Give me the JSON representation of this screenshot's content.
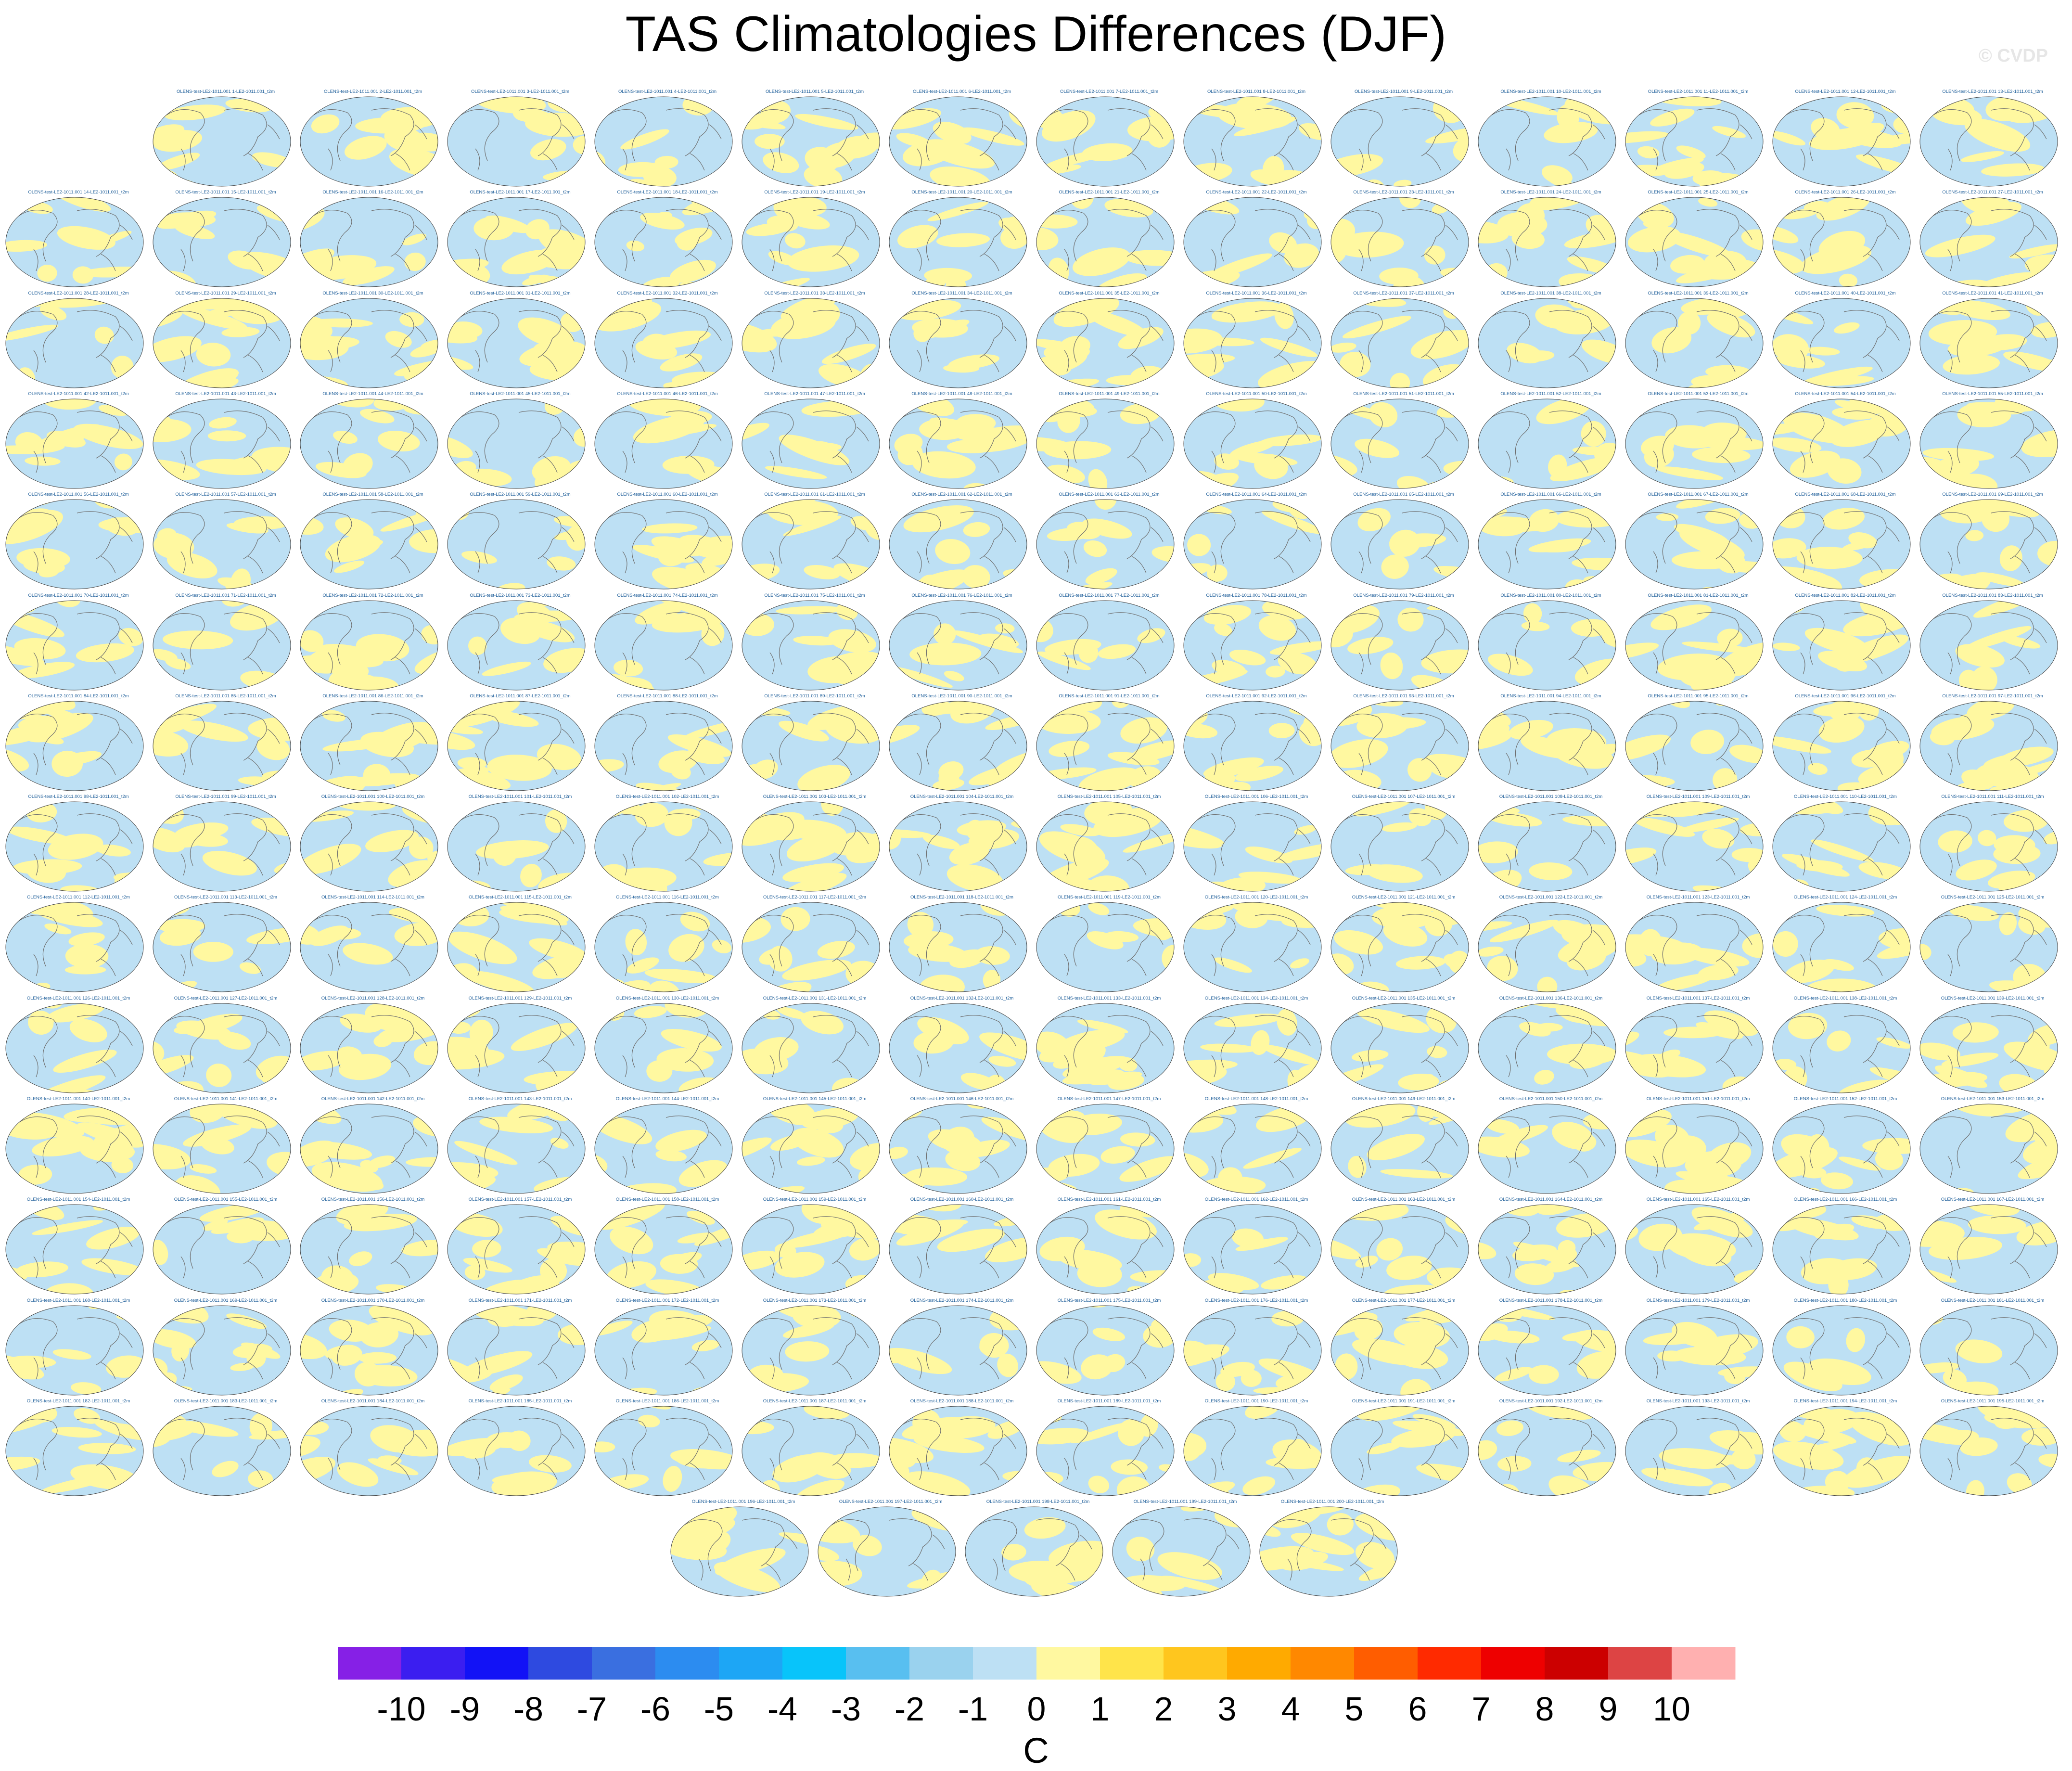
{
  "header": {
    "title": "TAS Climatologies Differences (DJF)",
    "watermark": "© CVDP"
  },
  "chart_data": {
    "type": "heatmap",
    "title": "TAS Climatologies Differences (DJF)",
    "panel_count": 200,
    "panel_labels": [
      "OLENS-test-LE2-1011.001 1-LE2-1011.001_t2m",
      "OLENS-test-LE2-1011.001 2-LE2-1011.001_t2m",
      "OLENS-test-LE2-1011.001 3-LE2-1011.001_t2m",
      "OLENS-test-LE2-1011.001 4-LE2-1011.001_t2m",
      "OLENS-test-LE2-1011.001 5-LE2-1011.001_t2m",
      "OLENS-test-LE2-1011.001 6-LE2-1011.001_t2m",
      "OLENS-test-LE2-1011.001 7-LE2-1011.001_t2m",
      "OLENS-test-LE2-1011.001 8-LE2-1011.001_t2m",
      "OLENS-test-LE2-1011.001 9-LE2-1011.001_t2m",
      "OLENS-test-LE2-1011.001 10-LE2-1011.001_t2m",
      "OLENS-test-LE2-1011.001 11-LE2-1011.001_t2m",
      "OLENS-test-LE2-1011.001 12-LE2-1011.001_t2m",
      "OLENS-test-LE2-1011.001 13-LE2-1011.001_t2m",
      "OLENS-test-LE2-1011.001 14-LE2-1011.001_t2m",
      "OLENS-test-LE2-1011.001 15-LE2-1011.001_t2m",
      "OLENS-test-LE2-1011.001 16-LE2-1011.001_t2m",
      "OLENS-test-LE2-1011.001 17-LE2-1011.001_t2m",
      "OLENS-test-LE2-1011.001 18-LE2-1011.001_t2m",
      "OLENS-test-LE2-1011.001 19-LE2-1011.001_t2m",
      "OLENS-test-LE2-1011.001 20-LE2-1011.001_t2m",
      "OLENS-test-LE2-1011.001 21-LE2-1011.001_t2m",
      "OLENS-test-LE2-1011.001 22-LE2-1011.001_t2m",
      "OLENS-test-LE2-1011.001 23-LE2-1011.001_t2m",
      "OLENS-test-LE2-1011.001 24-LE2-1011.001_t2m",
      "OLENS-test-LE2-1011.001 25-LE2-1011.001_t2m",
      "OLENS-test-LE2-1011.001 26-LE2-1011.001_t2m",
      "OLENS-test-LE2-1011.001 27-LE2-1011.001_t2m",
      "OLENS-test-LE2-1011.001 28-LE2-1011.001_t2m",
      "OLENS-test-LE2-1011.001 29-LE2-1011.001_t2m",
      "OLENS-test-LE2-1011.001 30-LE2-1011.001_t2m",
      "OLENS-test-LE2-1011.001 31-LE2-1011.001_t2m",
      "OLENS-test-LE2-1011.001 32-LE2-1011.001_t2m",
      "OLENS-test-LE2-1011.001 33-LE2-1011.001_t2m",
      "OLENS-test-LE2-1011.001 34-LE2-1011.001_t2m",
      "OLENS-test-LE2-1011.001 35-LE2-1011.001_t2m",
      "OLENS-test-LE2-1011.001 36-LE2-1011.001_t2m",
      "OLENS-test-LE2-1011.001 37-LE2-1011.001_t2m",
      "OLENS-test-LE2-1011.001 38-LE2-1011.001_t2m",
      "OLENS-test-LE2-1011.001 39-LE2-1011.001_t2m",
      "OLENS-test-LE2-1011.001 40-LE2-1011.001_t2m",
      "OLENS-test-LE2-1011.001 41-LE2-1011.001_t2m",
      "OLENS-test-LE2-1011.001 42-LE2-1011.001_t2m",
      "OLENS-test-LE2-1011.001 43-LE2-1011.001_t2m",
      "OLENS-test-LE2-1011.001 44-LE2-1011.001_t2m",
      "OLENS-test-LE2-1011.001 45-LE2-1011.001_t2m",
      "OLENS-test-LE2-1011.001 46-LE2-1011.001_t2m",
      "OLENS-test-LE2-1011.001 47-LE2-1011.001_t2m",
      "OLENS-test-LE2-1011.001 48-LE2-1011.001_t2m",
      "OLENS-test-LE2-1011.001 49-LE2-1011.001_t2m",
      "OLENS-test-LE2-1011.001 50-LE2-1011.001_t2m",
      "OLENS-test-LE2-1011.001 51-LE2-1011.001_t2m",
      "OLENS-test-LE2-1011.001 52-LE2-1011.001_t2m",
      "OLENS-test-LE2-1011.001 53-LE2-1011.001_t2m",
      "OLENS-test-LE2-1011.001 54-LE2-1011.001_t2m",
      "OLENS-test-LE2-1011.001 55-LE2-1011.001_t2m",
      "OLENS-test-LE2-1011.001 56-LE2-1011.001_t2m",
      "OLENS-test-LE2-1011.001 57-LE2-1011.001_t2m",
      "OLENS-test-LE2-1011.001 58-LE2-1011.001_t2m",
      "OLENS-test-LE2-1011.001 59-LE2-1011.001_t2m",
      "OLENS-test-LE2-1011.001 60-LE2-1011.001_t2m",
      "OLENS-test-LE2-1011.001 61-LE2-1011.001_t2m",
      "OLENS-test-LE2-1011.001 62-LE2-1011.001_t2m",
      "OLENS-test-LE2-1011.001 63-LE2-1011.001_t2m",
      "OLENS-test-LE2-1011.001 64-LE2-1011.001_t2m",
      "OLENS-test-LE2-1011.001 65-LE2-1011.001_t2m",
      "OLENS-test-LE2-1011.001 66-LE2-1011.001_t2m",
      "OLENS-test-LE2-1011.001 67-LE2-1011.001_t2m",
      "OLENS-test-LE2-1011.001 68-LE2-1011.001_t2m",
      "OLENS-test-LE2-1011.001 69-LE2-1011.001_t2m",
      "OLENS-test-LE2-1011.001 70-LE2-1011.001_t2m",
      "OLENS-test-LE2-1011.001 71-LE2-1011.001_t2m",
      "OLENS-test-LE2-1011.001 72-LE2-1011.001_t2m",
      "OLENS-test-LE2-1011.001 73-LE2-1011.001_t2m",
      "OLENS-test-LE2-1011.001 74-LE2-1011.001_t2m",
      "OLENS-test-LE2-1011.001 75-LE2-1011.001_t2m",
      "OLENS-test-LE2-1011.001 76-LE2-1011.001_t2m",
      "OLENS-test-LE2-1011.001 77-LE2-1011.001_t2m",
      "OLENS-test-LE2-1011.001 78-LE2-1011.001_t2m",
      "OLENS-test-LE2-1011.001 79-LE2-1011.001_t2m",
      "OLENS-test-LE2-1011.001 80-LE2-1011.001_t2m",
      "OLENS-test-LE2-1011.001 81-LE2-1011.001_t2m",
      "OLENS-test-LE2-1011.001 82-LE2-1011.001_t2m",
      "OLENS-test-LE2-1011.001 83-LE2-1011.001_t2m",
      "OLENS-test-LE2-1011.001 84-LE2-1011.001_t2m",
      "OLENS-test-LE2-1011.001 85-LE2-1011.001_t2m",
      "OLENS-test-LE2-1011.001 86-LE2-1011.001_t2m",
      "OLENS-test-LE2-1011.001 87-LE2-1011.001_t2m",
      "OLENS-test-LE2-1011.001 88-LE2-1011.001_t2m",
      "OLENS-test-LE2-1011.001 89-LE2-1011.001_t2m",
      "OLENS-test-LE2-1011.001 90-LE2-1011.001_t2m",
      "OLENS-test-LE2-1011.001 91-LE2-1011.001_t2m",
      "OLENS-test-LE2-1011.001 92-LE2-1011.001_t2m",
      "OLENS-test-LE2-1011.001 93-LE2-1011.001_t2m",
      "OLENS-test-LE2-1011.001 94-LE2-1011.001_t2m",
      "OLENS-test-LE2-1011.001 95-LE2-1011.001_t2m",
      "OLENS-test-LE2-1011.001 96-LE2-1011.001_t2m",
      "OLENS-test-LE2-1011.001 97-LE2-1011.001_t2m",
      "OLENS-test-LE2-1011.001 98-LE2-1011.001_t2m",
      "OLENS-test-LE2-1011.001 99-LE2-1011.001_t2m",
      "OLENS-test-LE2-1011.001 100-LE2-1011.001_t2m",
      "OLENS-test-LE2-1011.001 101-LE2-1011.001_t2m",
      "OLENS-test-LE2-1011.001 102-LE2-1011.001_t2m",
      "OLENS-test-LE2-1011.001 103-LE2-1011.001_t2m",
      "OLENS-test-LE2-1011.001 104-LE2-1011.001_t2m",
      "OLENS-test-LE2-1011.001 105-LE2-1011.001_t2m",
      "OLENS-test-LE2-1011.001 106-LE2-1011.001_t2m",
      "OLENS-test-LE2-1011.001 107-LE2-1011.001_t2m",
      "OLENS-test-LE2-1011.001 108-LE2-1011.001_t2m",
      "OLENS-test-LE2-1011.001 109-LE2-1011.001_t2m",
      "OLENS-test-LE2-1011.001 110-LE2-1011.001_t2m",
      "OLENS-test-LE2-1011.001 111-LE2-1011.001_t2m",
      "OLENS-test-LE2-1011.001 112-LE2-1011.001_t2m",
      "OLENS-test-LE2-1011.001 113-LE2-1011.001_t2m",
      "OLENS-test-LE2-1011.001 114-LE2-1011.001_t2m",
      "OLENS-test-LE2-1011.001 115-LE2-1011.001_t2m",
      "OLENS-test-LE2-1011.001 116-LE2-1011.001_t2m",
      "OLENS-test-LE2-1011.001 117-LE2-1011.001_t2m",
      "OLENS-test-LE2-1011.001 118-LE2-1011.001_t2m",
      "OLENS-test-LE2-1011.001 119-LE2-1011.001_t2m",
      "OLENS-test-LE2-1011.001 120-LE2-1011.001_t2m",
      "OLENS-test-LE2-1011.001 121-LE2-1011.001_t2m",
      "OLENS-test-LE2-1011.001 122-LE2-1011.001_t2m",
      "OLENS-test-LE2-1011.001 123-LE2-1011.001_t2m",
      "OLENS-test-LE2-1011.001 124-LE2-1011.001_t2m",
      "OLENS-test-LE2-1011.001 125-LE2-1011.001_t2m",
      "OLENS-test-LE2-1011.001 126-LE2-1011.001_t2m",
      "OLENS-test-LE2-1011.001 127-LE2-1011.001_t2m",
      "OLENS-test-LE2-1011.001 128-LE2-1011.001_t2m",
      "OLENS-test-LE2-1011.001 129-LE2-1011.001_t2m",
      "OLENS-test-LE2-1011.001 130-LE2-1011.001_t2m",
      "OLENS-test-LE2-1011.001 131-LE2-1011.001_t2m",
      "OLENS-test-LE2-1011.001 132-LE2-1011.001_t2m",
      "OLENS-test-LE2-1011.001 133-LE2-1011.001_t2m",
      "OLENS-test-LE2-1011.001 134-LE2-1011.001_t2m",
      "OLENS-test-LE2-1011.001 135-LE2-1011.001_t2m",
      "OLENS-test-LE2-1011.001 136-LE2-1011.001_t2m",
      "OLENS-test-LE2-1011.001 137-LE2-1011.001_t2m",
      "OLENS-test-LE2-1011.001 138-LE2-1011.001_t2m",
      "OLENS-test-LE2-1011.001 139-LE2-1011.001_t2m",
      "OLENS-test-LE2-1011.001 140-LE2-1011.001_t2m",
      "OLENS-test-LE2-1011.001 141-LE2-1011.001_t2m",
      "OLENS-test-LE2-1011.001 142-LE2-1011.001_t2m",
      "OLENS-test-LE2-1011.001 143-LE2-1011.001_t2m",
      "OLENS-test-LE2-1011.001 144-LE2-1011.001_t2m",
      "OLENS-test-LE2-1011.001 145-LE2-1011.001_t2m",
      "OLENS-test-LE2-1011.001 146-LE2-1011.001_t2m",
      "OLENS-test-LE2-1011.001 147-LE2-1011.001_t2m",
      "OLENS-test-LE2-1011.001 148-LE2-1011.001_t2m",
      "OLENS-test-LE2-1011.001 149-LE2-1011.001_t2m",
      "OLENS-test-LE2-1011.001 150-LE2-1011.001_t2m",
      "OLENS-test-LE2-1011.001 151-LE2-1011.001_t2m",
      "OLENS-test-LE2-1011.001 152-LE2-1011.001_t2m",
      "OLENS-test-LE2-1011.001 153-LE2-1011.001_t2m",
      "OLENS-test-LE2-1011.001 154-LE2-1011.001_t2m",
      "OLENS-test-LE2-1011.001 155-LE2-1011.001_t2m",
      "OLENS-test-LE2-1011.001 156-LE2-1011.001_t2m",
      "OLENS-test-LE2-1011.001 157-LE2-1011.001_t2m",
      "OLENS-test-LE2-1011.001 158-LE2-1011.001_t2m",
      "OLENS-test-LE2-1011.001 159-LE2-1011.001_t2m",
      "OLENS-test-LE2-1011.001 160-LE2-1011.001_t2m",
      "OLENS-test-LE2-1011.001 161-LE2-1011.001_t2m",
      "OLENS-test-LE2-1011.001 162-LE2-1011.001_t2m",
      "OLENS-test-LE2-1011.001 163-LE2-1011.001_t2m",
      "OLENS-test-LE2-1011.001 164-LE2-1011.001_t2m",
      "OLENS-test-LE2-1011.001 165-LE2-1011.001_t2m",
      "OLENS-test-LE2-1011.001 166-LE2-1011.001_t2m",
      "OLENS-test-LE2-1011.001 167-LE2-1011.001_t2m",
      "OLENS-test-LE2-1011.001 168-LE2-1011.001_t2m",
      "OLENS-test-LE2-1011.001 169-LE2-1011.001_t2m",
      "OLENS-test-LE2-1011.001 170-LE2-1011.001_t2m",
      "OLENS-test-LE2-1011.001 171-LE2-1011.001_t2m",
      "OLENS-test-LE2-1011.001 172-LE2-1011.001_t2m",
      "OLENS-test-LE2-1011.001 173-LE2-1011.001_t2m",
      "OLENS-test-LE2-1011.001 174-LE2-1011.001_t2m",
      "OLENS-test-LE2-1011.001 175-LE2-1011.001_t2m",
      "OLENS-test-LE2-1011.001 176-LE2-1011.001_t2m",
      "OLENS-test-LE2-1011.001 177-LE2-1011.001_t2m",
      "OLENS-test-LE2-1011.001 178-LE2-1011.001_t2m",
      "OLENS-test-LE2-1011.001 179-LE2-1011.001_t2m",
      "OLENS-test-LE2-1011.001 180-LE2-1011.001_t2m",
      "OLENS-test-LE2-1011.001 181-LE2-1011.001_t2m",
      "OLENS-test-LE2-1011.001 182-LE2-1011.001_t2m",
      "OLENS-test-LE2-1011.001 183-LE2-1011.001_t2m",
      "OLENS-test-LE2-1011.001 184-LE2-1011.001_t2m",
      "OLENS-test-LE2-1011.001 185-LE2-1011.001_t2m",
      "OLENS-test-LE2-1011.001 186-LE2-1011.001_t2m",
      "OLENS-test-LE2-1011.001 187-LE2-1011.001_t2m",
      "OLENS-test-LE2-1011.001 188-LE2-1011.001_t2m",
      "OLENS-test-LE2-1011.001 189-LE2-1011.001_t2m",
      "OLENS-test-LE2-1011.001 190-LE2-1011.001_t2m",
      "OLENS-test-LE2-1011.001 191-LE2-1011.001_t2m",
      "OLENS-test-LE2-1011.001 192-LE2-1011.001_t2m",
      "OLENS-test-LE2-1011.001 193-LE2-1011.001_t2m",
      "OLENS-test-LE2-1011.001 194-LE2-1011.001_t2m",
      "OLENS-test-LE2-1011.001 195-LE2-1011.001_t2m",
      "OLENS-test-LE2-1011.001 196-LE2-1011.001_t2m",
      "OLENS-test-LE2-1011.001 197-LE2-1011.001_t2m",
      "OLENS-test-LE2-1011.001 198-LE2-1011.001_t2m",
      "OLENS-test-LE2-1011.001 199-LE2-1011.001_t2m",
      "OLENS-test-LE2-1011.001 200-LE2-1011.001_t2m"
    ],
    "projection": "global map",
    "dominant_value_range": [
      -1,
      1
    ],
    "colorbar": {
      "units": "C",
      "labels": [
        "-10",
        "-9",
        "-8",
        "-7",
        "-6",
        "-5",
        "-4",
        "-3",
        "-2",
        "-1",
        "0",
        "1",
        "2",
        "3",
        "4",
        "5",
        "6",
        "7",
        "8",
        "9",
        "10"
      ],
      "colors": [
        "#8620e6",
        "#3b1ef0",
        "#1212f6",
        "#2e4ae0",
        "#3a6fe0",
        "#2c8cf0",
        "#1da6f5",
        "#08c4fa",
        "#58bff0",
        "#9ad2ee",
        "#bde0f4",
        "#fff8a0",
        "#ffe44a",
        "#ffc61e",
        "#ffaa00",
        "#ff8800",
        "#ff5d00",
        "#ff2a00",
        "#ee0000",
        "#cc0000",
        "#dd4444",
        "#ffb0b0"
      ]
    }
  }
}
